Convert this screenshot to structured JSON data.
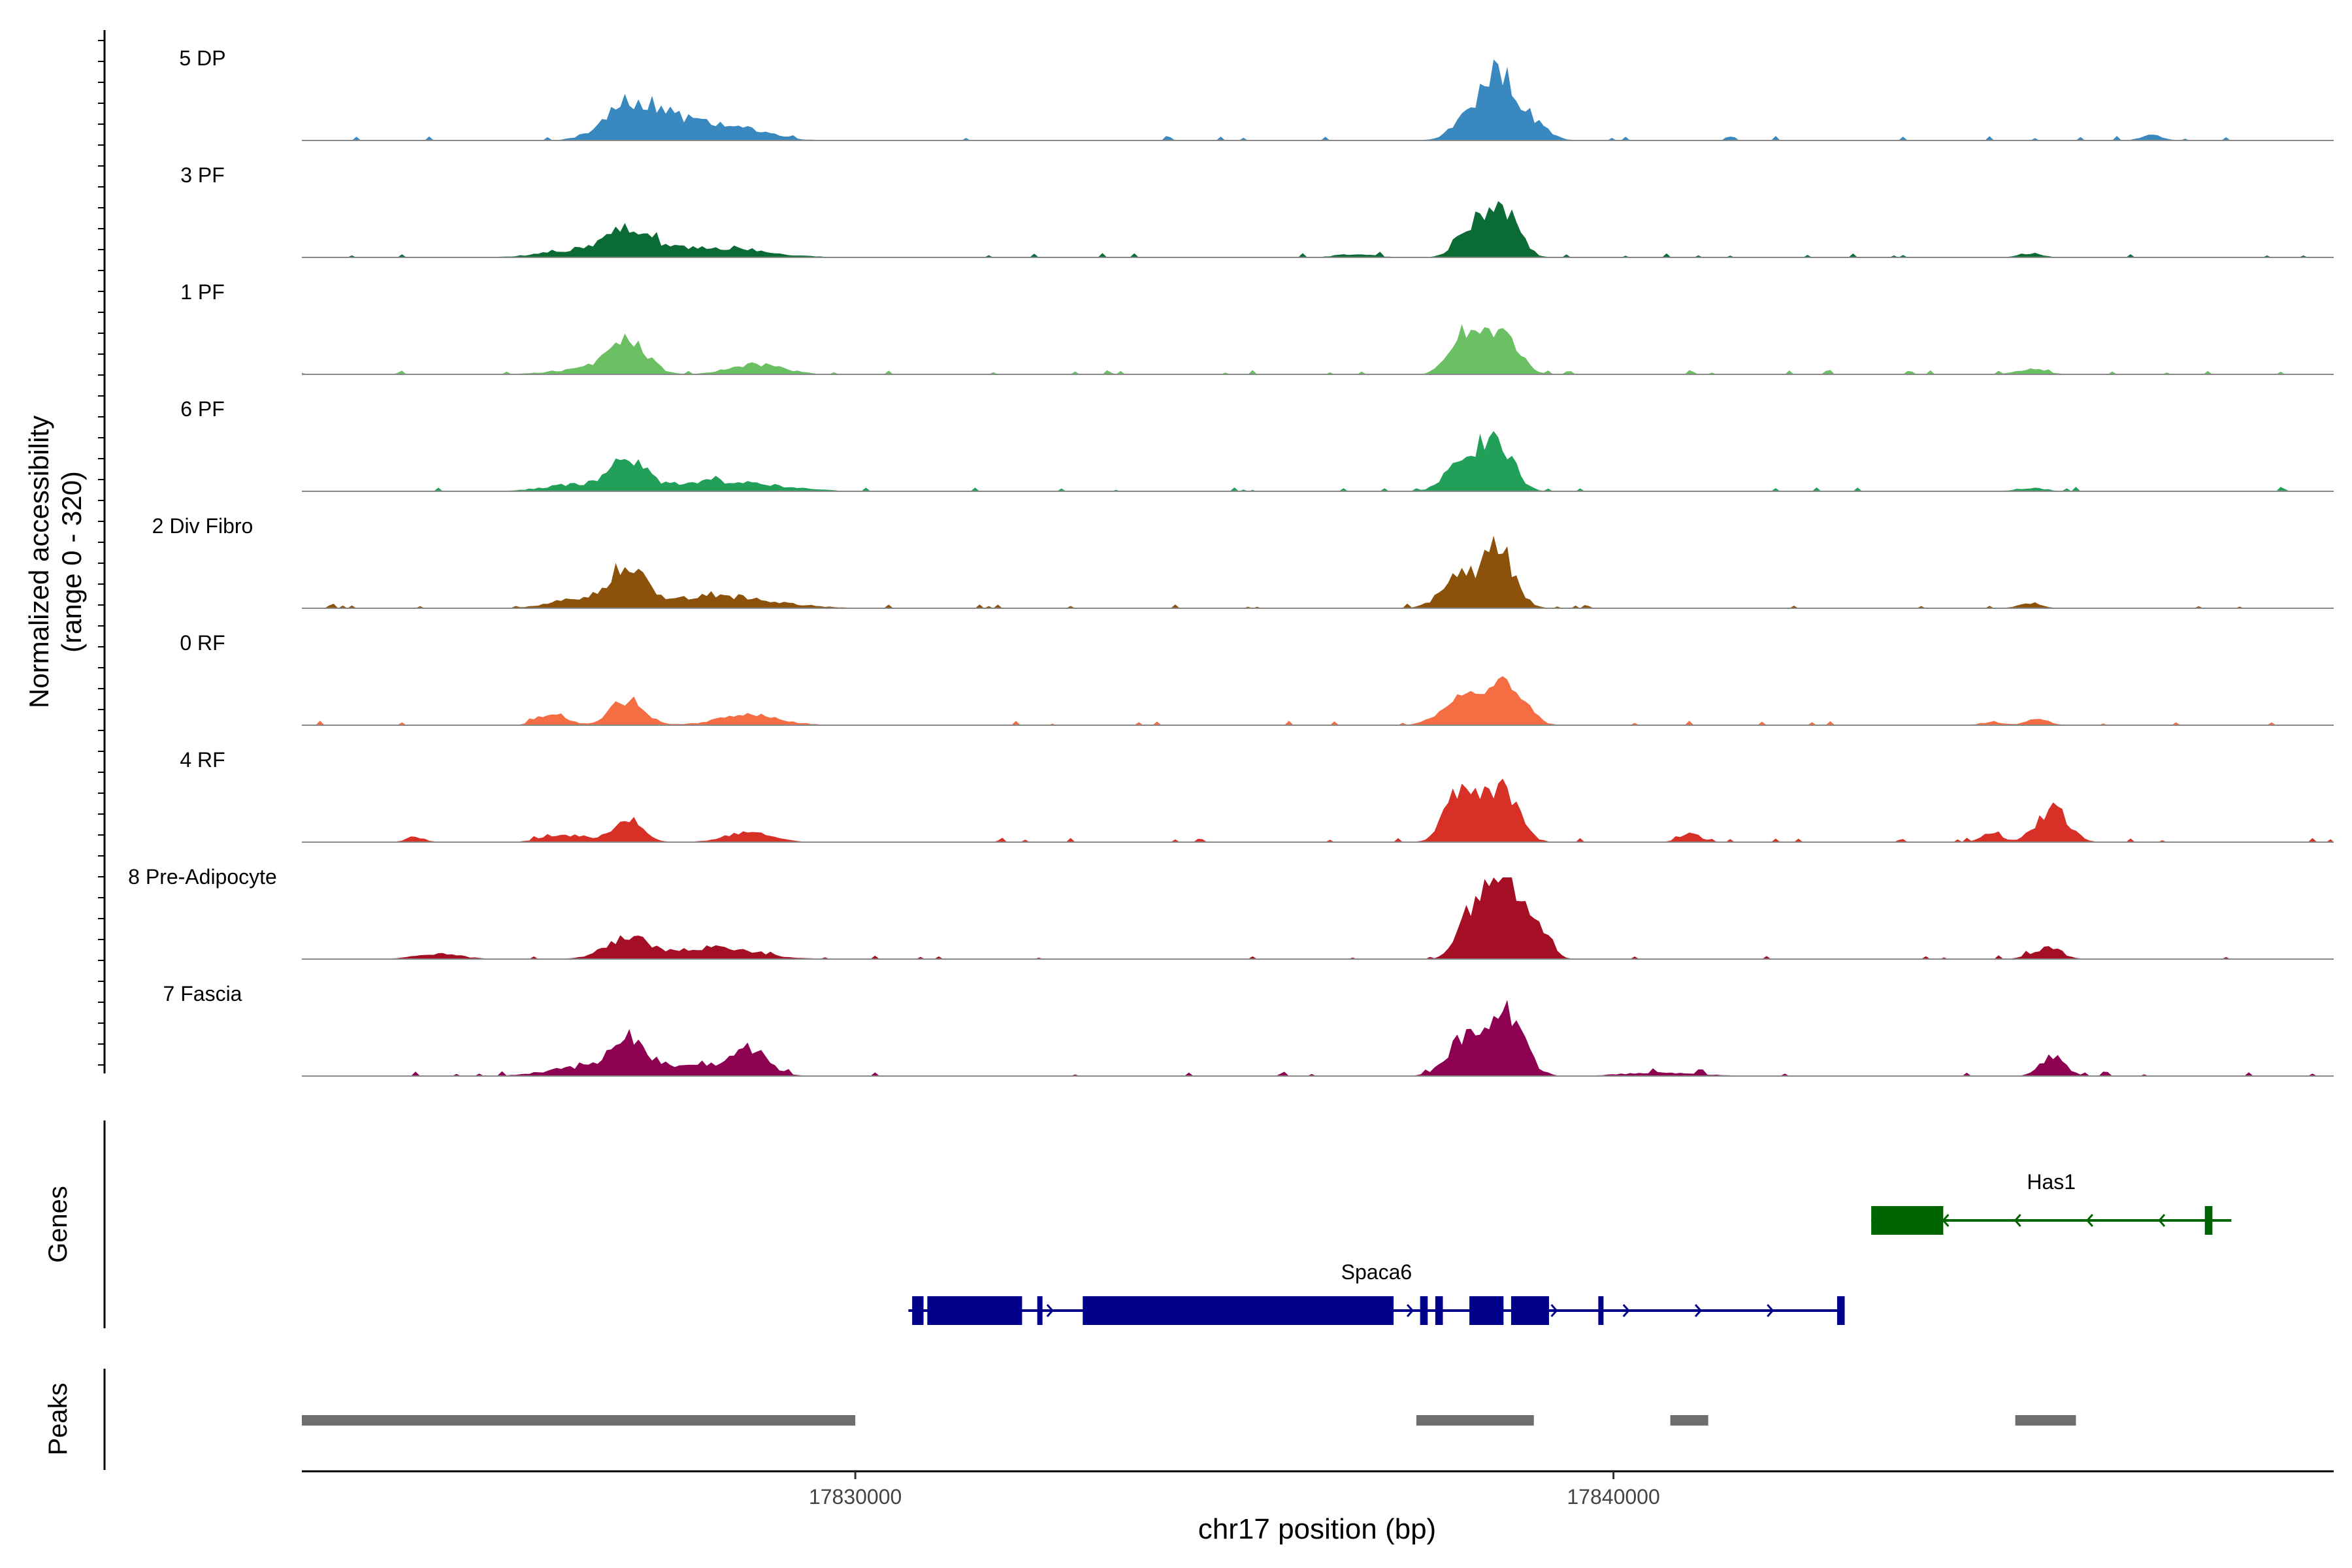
{
  "chart_data": {
    "type": "area",
    "title": "",
    "y_axis_label_line1": "Normalized accessibility",
    "y_axis_label_line2": "(range 0 - 320)",
    "ylim": [
      0,
      320
    ],
    "xlabel": "chr17 position (bp)",
    "xlim": [
      17822700,
      17849500
    ],
    "x_ticks": [
      17830000,
      17840000
    ],
    "x_tick_labels": [
      "17830000",
      "17840000"
    ],
    "genes_label": "Genes",
    "peaks_label": "Peaks",
    "tracks": [
      {
        "name": "5 DP",
        "color": "#3a88c0",
        "peaks": [
          [
            17827000,
            190,
            330
          ],
          [
            17827400,
            80,
            300
          ],
          [
            17827900,
            70,
            350
          ],
          [
            17828500,
            60,
            400
          ],
          [
            17838200,
            180,
            250
          ],
          [
            17838500,
            320,
            170
          ],
          [
            17838900,
            130,
            200
          ],
          [
            17847100,
            30,
            150
          ]
        ]
      },
      {
        "name": "3 PF",
        "color": "#0b6b34",
        "peaks": [
          [
            17826400,
            40,
            500
          ],
          [
            17827000,
            120,
            300
          ],
          [
            17828000,
            60,
            700
          ],
          [
            17838200,
            200,
            220
          ],
          [
            17838600,
            220,
            180
          ],
          [
            17836600,
            20,
            250
          ],
          [
            17845500,
            25,
            150
          ]
        ]
      },
      {
        "name": "1 PF",
        "color": "#6cc064",
        "peaks": [
          [
            17826400,
            30,
            400
          ],
          [
            17827000,
            180,
            250
          ],
          [
            17828700,
            60,
            350
          ],
          [
            17838000,
            240,
            180
          ],
          [
            17838500,
            260,
            220
          ],
          [
            17845500,
            30,
            200
          ]
        ]
      },
      {
        "name": "6 PF",
        "color": "#22a05a",
        "peaks": [
          [
            17826300,
            40,
            400
          ],
          [
            17827000,
            170,
            220
          ],
          [
            17828200,
            60,
            700
          ],
          [
            17838100,
            200,
            250
          ],
          [
            17838500,
            240,
            200
          ],
          [
            17845500,
            20,
            200
          ]
        ]
      },
      {
        "name": "2 Div Fibro",
        "color": "#8c510a",
        "peaks": [
          [
            17826300,
            50,
            350
          ],
          [
            17827000,
            200,
            250
          ],
          [
            17828200,
            70,
            700
          ],
          [
            17838000,
            180,
            250
          ],
          [
            17838500,
            320,
            200
          ],
          [
            17845500,
            30,
            150
          ]
        ]
      },
      {
        "name": "0 RF",
        "color": "#f46d43",
        "peaks": [
          [
            17826000,
            70,
            180
          ],
          [
            17827000,
            150,
            220
          ],
          [
            17828600,
            60,
            400
          ],
          [
            17838000,
            180,
            250
          ],
          [
            17838600,
            270,
            220
          ],
          [
            17845000,
            20,
            150
          ],
          [
            17845600,
            40,
            140
          ]
        ]
      },
      {
        "name": "4 RF",
        "color": "#d73027",
        "peaks": [
          [
            17824200,
            30,
            120
          ],
          [
            17826200,
            40,
            300
          ],
          [
            17827000,
            110,
            200
          ],
          [
            17828600,
            60,
            300
          ],
          [
            17838000,
            320,
            200
          ],
          [
            17838500,
            320,
            220
          ],
          [
            17841000,
            50,
            140
          ],
          [
            17845000,
            50,
            140
          ],
          [
            17845800,
            200,
            200
          ]
        ]
      },
      {
        "name": "8 Pre-Adipocyte",
        "color": "#a50f25",
        "peaks": [
          [
            17824500,
            30,
            300
          ],
          [
            17827000,
            120,
            300
          ],
          [
            17828200,
            70,
            500
          ],
          [
            17838200,
            320,
            200
          ],
          [
            17838600,
            460,
            170
          ],
          [
            17839000,
            200,
            150
          ],
          [
            17845700,
            60,
            200
          ]
        ]
      },
      {
        "name": "7 Fascia",
        "color": "#8e0152",
        "peaks": [
          [
            17826400,
            50,
            450
          ],
          [
            17827000,
            200,
            220
          ],
          [
            17828600,
            140,
            250
          ],
          [
            17827800,
            60,
            500
          ],
          [
            17838100,
            250,
            250
          ],
          [
            17838600,
            340,
            220
          ],
          [
            17840600,
            20,
            500
          ],
          [
            17845800,
            110,
            160
          ]
        ]
      }
    ],
    "genes": [
      {
        "name": "Spaca6",
        "color": "#00008b",
        "start": 17830700,
        "end": 17843050,
        "strand": "+",
        "exons": [
          [
            17830750,
            17830900
          ],
          [
            17830950,
            17832200
          ],
          [
            17832400,
            17832450
          ],
          [
            17833000,
            17837100
          ],
          [
            17837450,
            17837550
          ],
          [
            17837650,
            17837750
          ],
          [
            17838100,
            17838550
          ],
          [
            17838650,
            17839150
          ],
          [
            17839800,
            17839850
          ],
          [
            17842950,
            17843050
          ]
        ]
      },
      {
        "name": "Has1",
        "color": "#006400",
        "start": 17843400,
        "end": 17848150,
        "strand": "-",
        "exons": [
          [
            17843400,
            17844350
          ],
          [
            17847800,
            17847900
          ]
        ]
      }
    ],
    "peak_regions": [
      [
        17822300,
        17830000
      ],
      [
        17837400,
        17838950
      ],
      [
        17840750,
        17841250
      ],
      [
        17845300,
        17846100
      ]
    ]
  }
}
